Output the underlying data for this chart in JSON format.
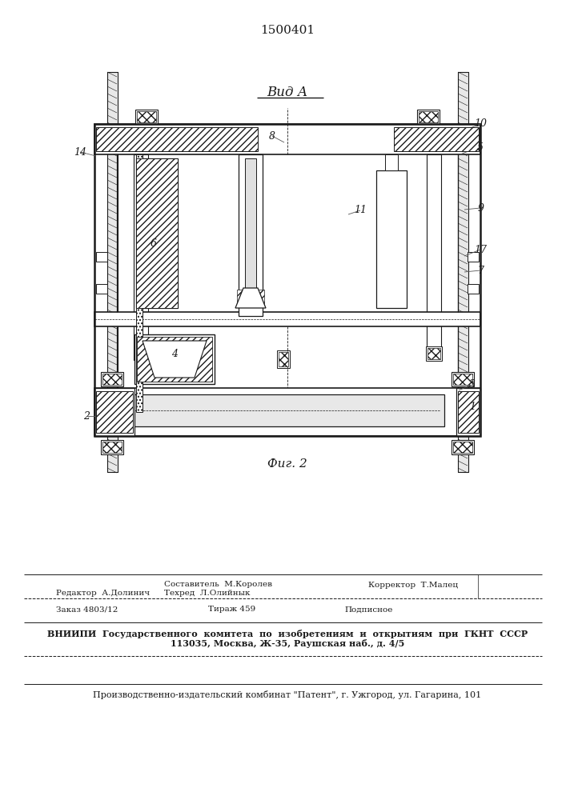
{
  "patent_number": "1500401",
  "view_label": "Вид А",
  "fig_label": "Фиг. 2",
  "line_color": "#1a1a1a",
  "footer": {
    "sestavitel": "Составитель  М.Королев",
    "redaktor": "Редактор  А.Долинич",
    "tekhred": "Техред  Л.Олийнык",
    "korrektor": "Корректор  Т.Малец",
    "zakaz": "Заказ 4803/12",
    "tirazh": "Тираж 459",
    "podpisnoe": "Подписное",
    "vniip1": "ВНИИПИ  Государственного  комитета  по  изобретениям  и  открытиям  при  ГКНТ  СССР",
    "vniip2": "113035, Москва, Ж-35, Раушская наб., д. 4/5",
    "patent_line": "Производственно-издательский комбинат \"Патент\", г. Ужгород, ул. Гагарина, 101"
  }
}
